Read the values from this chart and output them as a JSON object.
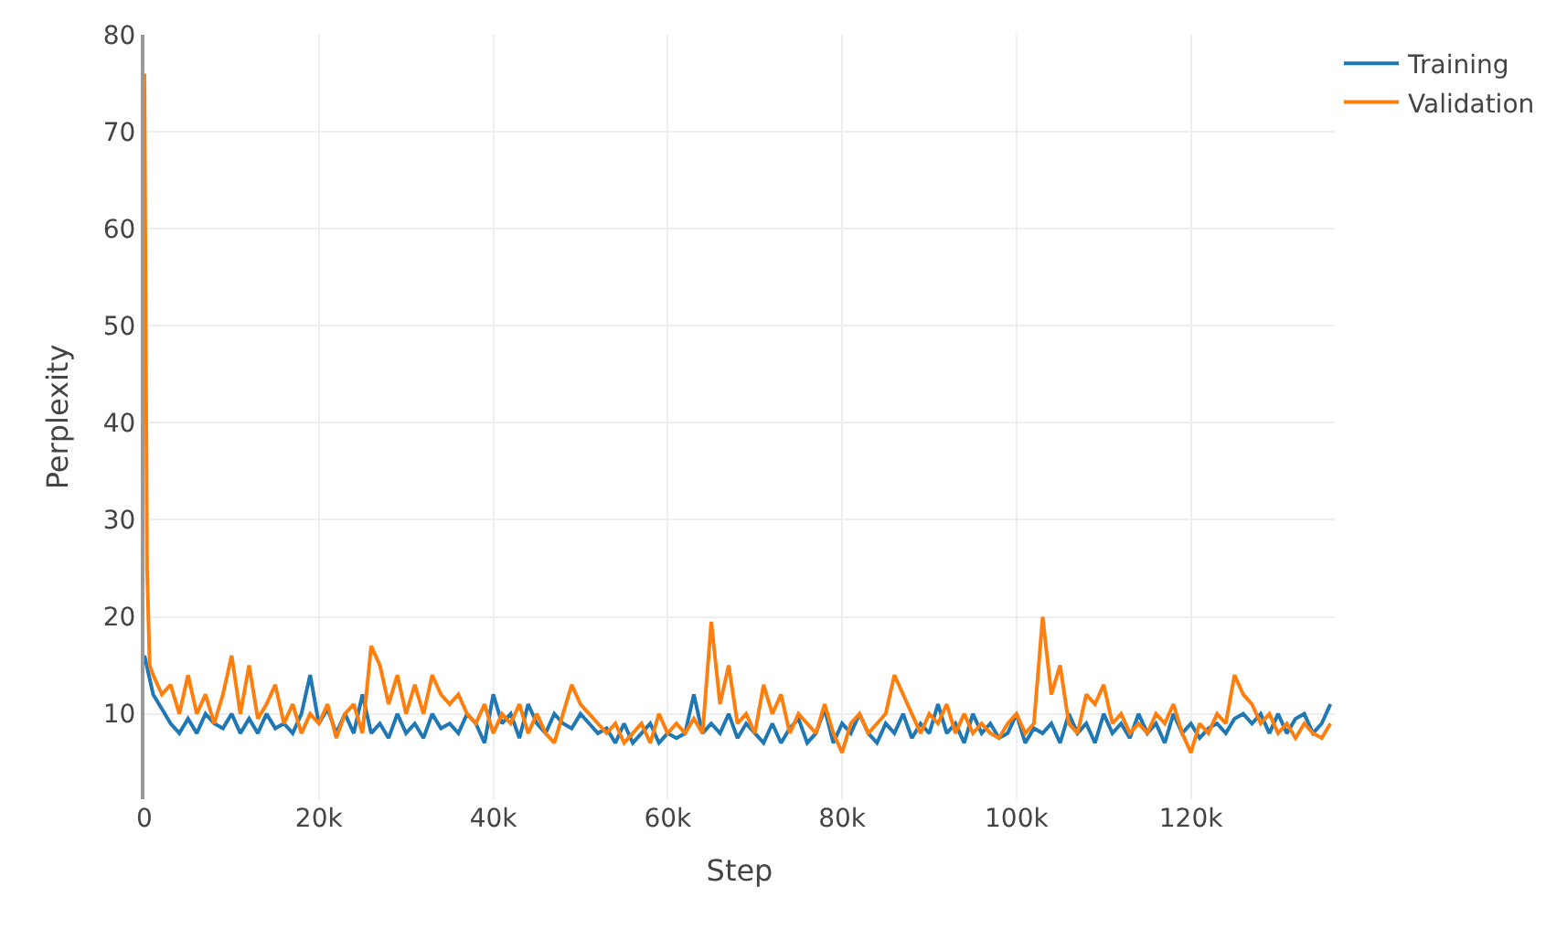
{
  "chart_data": {
    "type": "line",
    "xlabel": "Step",
    "ylabel": "Perplexity",
    "xlim": [
      0,
      136500
    ],
    "ylim": [
      1.2,
      80
    ],
    "xticks": [
      {
        "value": 0,
        "label": "0"
      },
      {
        "value": 20000,
        "label": "20k"
      },
      {
        "value": 40000,
        "label": "40k"
      },
      {
        "value": 60000,
        "label": "60k"
      },
      {
        "value": 80000,
        "label": "80k"
      },
      {
        "value": 100000,
        "label": "100k"
      },
      {
        "value": 120000,
        "label": "120k"
      }
    ],
    "yticks": [
      10,
      20,
      30,
      40,
      50,
      60,
      70,
      80
    ],
    "grid": true,
    "legend": "top right",
    "marker": "none",
    "line_style": "solid",
    "series": [
      {
        "name": "Training",
        "color": "#1f77b4",
        "x": [
          0,
          1000,
          2000,
          3000,
          4000,
          5000,
          6000,
          7000,
          8000,
          9000,
          10000,
          11000,
          12000,
          13000,
          14000,
          15000,
          16000,
          17000,
          18000,
          19000,
          20000,
          21000,
          22000,
          23000,
          24000,
          25000,
          26000,
          27000,
          28000,
          29000,
          30000,
          31000,
          32000,
          33000,
          34000,
          35000,
          36000,
          37000,
          38000,
          39000,
          40000,
          41000,
          42000,
          43000,
          44000,
          45000,
          46000,
          47000,
          48000,
          49000,
          50000,
          51000,
          52000,
          53000,
          54000,
          55000,
          56000,
          57000,
          58000,
          59000,
          60000,
          61000,
          62000,
          63000,
          64000,
          65000,
          66000,
          67000,
          68000,
          69000,
          70000,
          71000,
          72000,
          73000,
          74000,
          75000,
          76000,
          77000,
          78000,
          79000,
          80000,
          81000,
          82000,
          83000,
          84000,
          85000,
          86000,
          87000,
          88000,
          89000,
          90000,
          91000,
          92000,
          93000,
          94000,
          95000,
          96000,
          97000,
          98000,
          99000,
          100000,
          101000,
          102000,
          103000,
          104000,
          105000,
          106000,
          107000,
          108000,
          109000,
          110000,
          111000,
          112000,
          113000,
          114000,
          115000,
          116000,
          117000,
          118000,
          119000,
          120000,
          121000,
          122000,
          123000,
          124000,
          125000,
          126000,
          127000,
          128000,
          129000,
          130000,
          131000,
          132000,
          133000,
          134000,
          135000,
          136000
        ],
        "values": [
          16,
          12,
          10.5,
          9,
          8,
          9.5,
          8,
          10,
          9,
          8.5,
          10,
          8,
          9.5,
          8,
          10,
          8.5,
          9,
          8,
          10,
          14,
          9,
          10.5,
          8,
          10,
          8,
          12,
          8,
          9,
          7.5,
          10,
          8,
          9,
          7.5,
          10,
          8.5,
          9,
          8,
          10,
          9,
          7,
          12,
          9,
          10,
          7.5,
          11,
          9,
          8,
          10,
          9,
          8.5,
          10,
          9,
          8,
          8.5,
          7,
          9,
          7,
          8,
          9,
          7,
          8,
          7.5,
          8,
          12,
          8,
          9,
          8,
          10,
          7.5,
          9,
          8,
          7,
          9,
          7,
          8.5,
          9.5,
          7,
          8,
          10.5,
          7,
          9,
          8,
          10,
          8,
          7,
          9,
          8,
          10,
          7.5,
          9,
          8,
          11,
          8,
          9,
          7,
          10,
          8,
          9,
          7.5,
          8,
          10,
          7,
          8.5,
          8,
          9,
          7,
          10,
          8,
          9,
          7,
          10,
          8,
          9,
          7.5,
          10,
          8,
          9,
          7,
          10,
          8,
          9,
          7.5,
          8.5,
          9,
          8,
          9.5,
          10,
          9,
          10,
          8,
          10,
          8,
          9.5,
          10,
          8,
          9,
          11
        ]
      },
      {
        "name": "Validation",
        "color": "#ff7f0e",
        "x": [
          0,
          300,
          600,
          1000,
          2000,
          3000,
          4000,
          5000,
          6000,
          7000,
          8000,
          9000,
          10000,
          11000,
          12000,
          13000,
          14000,
          15000,
          16000,
          17000,
          18000,
          19000,
          20000,
          21000,
          22000,
          23000,
          24000,
          25000,
          26000,
          27000,
          28000,
          29000,
          30000,
          31000,
          32000,
          33000,
          34000,
          35000,
          36000,
          37000,
          38000,
          39000,
          40000,
          41000,
          42000,
          43000,
          44000,
          45000,
          46000,
          47000,
          48000,
          49000,
          50000,
          51000,
          52000,
          53000,
          54000,
          55000,
          56000,
          57000,
          58000,
          59000,
          60000,
          61000,
          62000,
          63000,
          64000,
          65000,
          66000,
          67000,
          68000,
          69000,
          70000,
          71000,
          72000,
          73000,
          74000,
          75000,
          76000,
          77000,
          78000,
          79000,
          80000,
          81000,
          82000,
          83000,
          84000,
          85000,
          86000,
          87000,
          88000,
          89000,
          90000,
          91000,
          92000,
          93000,
          94000,
          95000,
          96000,
          97000,
          98000,
          99000,
          100000,
          101000,
          102000,
          103000,
          104000,
          105000,
          106000,
          107000,
          108000,
          109000,
          110000,
          111000,
          112000,
          113000,
          114000,
          115000,
          116000,
          117000,
          118000,
          119000,
          120000,
          121000,
          122000,
          123000,
          124000,
          125000,
          126000,
          127000,
          128000,
          129000,
          130000,
          131000,
          132000,
          133000,
          134000,
          135000,
          136000
        ],
        "values": [
          76,
          25,
          15,
          14,
          12,
          13,
          10,
          14,
          10,
          12,
          9,
          12,
          16,
          10,
          15,
          9.5,
          11,
          13,
          9,
          11,
          8,
          10,
          9,
          11,
          7.5,
          10,
          11,
          8,
          17,
          15,
          11,
          14,
          10,
          13,
          10,
          14,
          12,
          11,
          12,
          10,
          9,
          11,
          8,
          10,
          9,
          11,
          8,
          10,
          8,
          7,
          10,
          13,
          11,
          10,
          9,
          8,
          9,
          7,
          8,
          9,
          7,
          10,
          8,
          9,
          8,
          9.5,
          8,
          19.5,
          11,
          15,
          9,
          10,
          8,
          13,
          10,
          12,
          8,
          10,
          9,
          8,
          11,
          8,
          6,
          9,
          10,
          8,
          9,
          10,
          14,
          12,
          10,
          8,
          10,
          9,
          11,
          8,
          10,
          8,
          9,
          8,
          7.5,
          9,
          10,
          8,
          9,
          20,
          12,
          15,
          9,
          8,
          12,
          11,
          13,
          9,
          10,
          8,
          9,
          8,
          10,
          9,
          11,
          8,
          6,
          9,
          8,
          10,
          9,
          14,
          12,
          11,
          9,
          10,
          8,
          9,
          7.5,
          9,
          8,
          7.5,
          9
        ]
      }
    ]
  }
}
